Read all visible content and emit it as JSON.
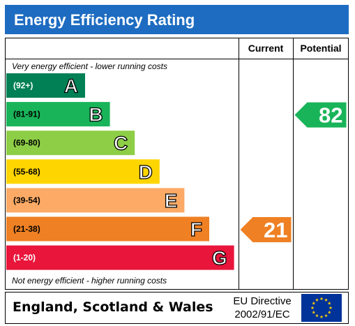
{
  "chart_data": {
    "type": "bar",
    "title": "Energy Efficiency Rating",
    "columns": {
      "current": "Current",
      "potential": "Potential"
    },
    "top_note": "Very energy efficient - lower running costs",
    "bottom_note": "Not energy efficient - higher running costs",
    "bands": [
      {
        "letter": "A",
        "range": "(92+)",
        "color": "#008054"
      },
      {
        "letter": "B",
        "range": "(81-91)",
        "color": "#19b459"
      },
      {
        "letter": "C",
        "range": "(69-80)",
        "color": "#8dce46"
      },
      {
        "letter": "D",
        "range": "(55-68)",
        "color": "#ffd500"
      },
      {
        "letter": "E",
        "range": "(39-54)",
        "color": "#fcaa65"
      },
      {
        "letter": "F",
        "range": "(21-38)",
        "color": "#ef8023"
      },
      {
        "letter": "G",
        "range": "(1-20)",
        "color": "#e9153b"
      }
    ],
    "current": {
      "value": 21,
      "band": "F",
      "color": "#ef8023"
    },
    "potential": {
      "value": 82,
      "band": "B",
      "color": "#19b459"
    },
    "footer": {
      "region": "England, Scotland & Wales",
      "directive_line1": "EU Directive",
      "directive_line2": "2002/91/EC"
    }
  },
  "colors": {
    "header_bg": "#1e6cc1",
    "eu_flag_bg": "#003399",
    "eu_star": "#ffcc00"
  }
}
